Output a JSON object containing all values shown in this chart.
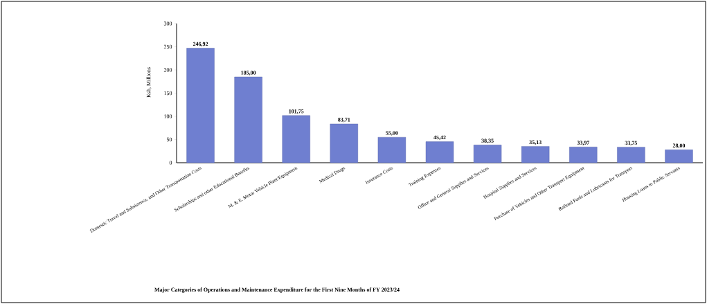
{
  "chart_data": {
    "type": "bar",
    "title": "Major Categories of Operations and Maintenance Expenditure for the First Nine Months of FY 2023/24",
    "ylabel": "Ksh, Millions",
    "categories": [
      "Domestic Travel and Subsistence, and Other Transportation Costs",
      "Scholarships and other Educational Benefits",
      "M. & E. Motor Vehicle Plant/Equipment",
      "Medical Drugs",
      "Insurance Costs",
      "Training Expenses",
      "Office and General Supplies and Services",
      "Hospital Supplies and Services",
      "Purchase of Vehicles and Other Transport Equipment",
      "Refined Fuels and Lubricants for Transport",
      "Housing Loans to Public Servants"
    ],
    "values": [
      246.92,
      185.0,
      101.75,
      83.71,
      55.0,
      45.42,
      38.35,
      35.13,
      33.97,
      33.75,
      28.0
    ],
    "value_labels": [
      "246,92",
      "185,00",
      "101,75",
      "83,71",
      "55,00",
      "45,42",
      "38,35",
      "35,13",
      "33,97",
      "33,75",
      "28,00"
    ],
    "color": "#6f7fd0",
    "ylim": [
      0,
      300
    ],
    "yticks": [
      0,
      50,
      100,
      150,
      200,
      250,
      300
    ]
  }
}
